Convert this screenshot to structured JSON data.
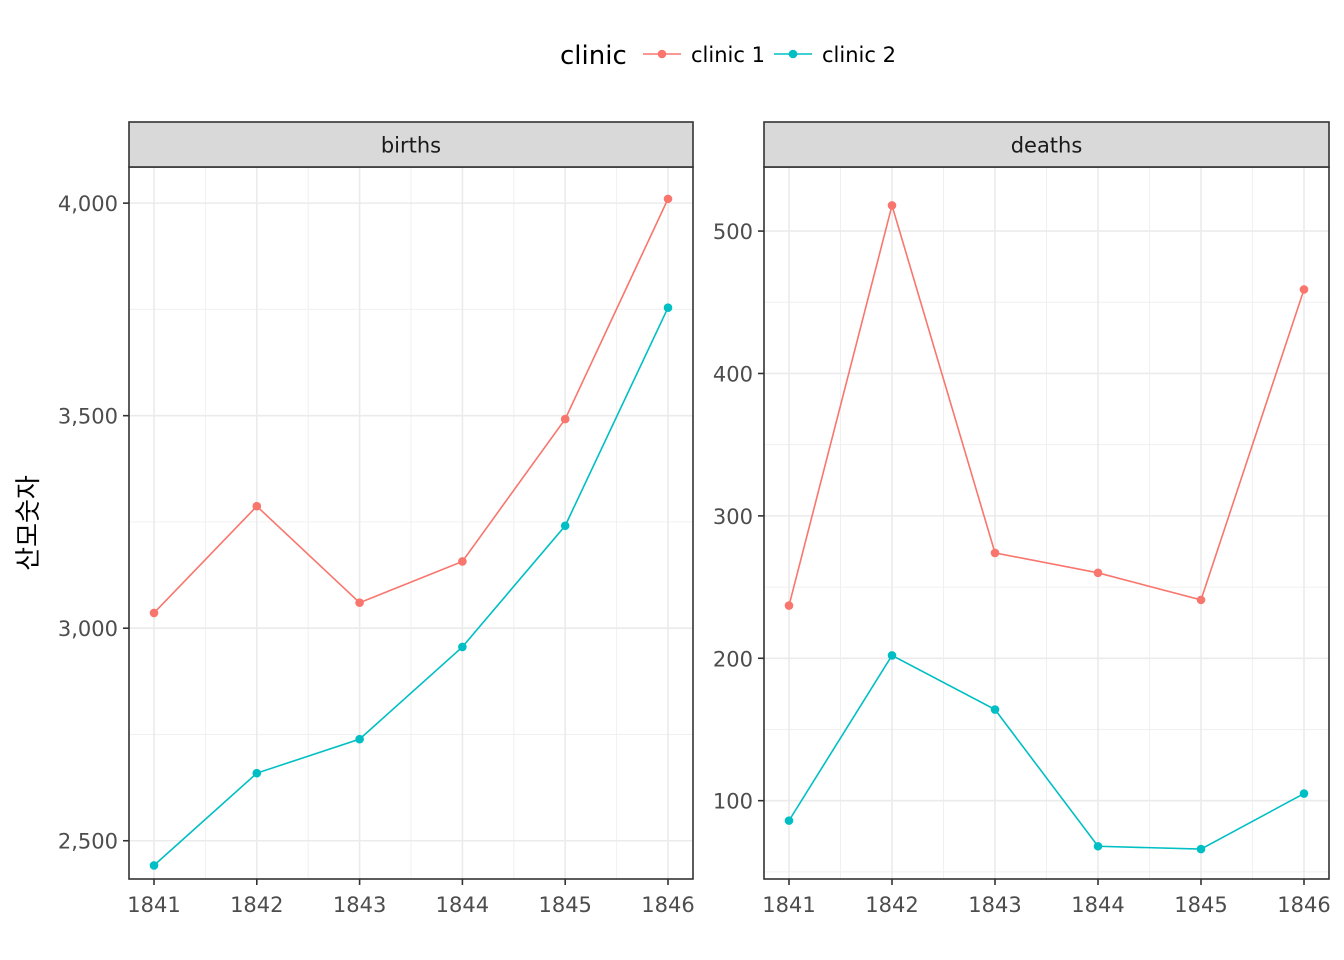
{
  "chart_data": {
    "type": "line",
    "ylabel": "산모숫자",
    "legend": {
      "title": "clinic",
      "position": "top",
      "entries": [
        {
          "label": "clinic 1",
          "color": "#F8766D"
        },
        {
          "label": "clinic 2",
          "color": "#00BFC4"
        }
      ]
    },
    "grid": true,
    "x": [
      1841,
      1842,
      1843,
      1844,
      1845,
      1846
    ],
    "x_tick_labels": [
      "1841",
      "1842",
      "1843",
      "1844",
      "1845",
      "1846"
    ],
    "panels": [
      {
        "title": "births",
        "ylim": [
          2410,
          4085
        ],
        "y_ticks": [
          2500,
          3000,
          3500,
          4000
        ],
        "y_tick_labels": [
          "2,500",
          "3,000",
          "3,500",
          "4,000"
        ],
        "series": [
          {
            "name": "clinic 1",
            "color": "#F8766D",
            "values": [
              3036,
              3287,
              3060,
              3157,
              3492,
              4010
            ]
          },
          {
            "name": "clinic 2",
            "color": "#00BFC4",
            "values": [
              2442,
              2659,
              2739,
              2956,
              3241,
              3754
            ]
          }
        ]
      },
      {
        "title": "deaths",
        "ylim": [
          45,
          545
        ],
        "y_ticks": [
          100,
          200,
          300,
          400,
          500
        ],
        "y_tick_labels": [
          "100",
          "200",
          "300",
          "400",
          "500"
        ],
        "series": [
          {
            "name": "clinic 1",
            "color": "#F8766D",
            "values": [
              237,
              518,
              274,
              260,
              241,
              459
            ]
          },
          {
            "name": "clinic 2",
            "color": "#00BFC4",
            "values": [
              86,
              202,
              164,
              68,
              66,
              105
            ]
          }
        ]
      }
    ]
  }
}
